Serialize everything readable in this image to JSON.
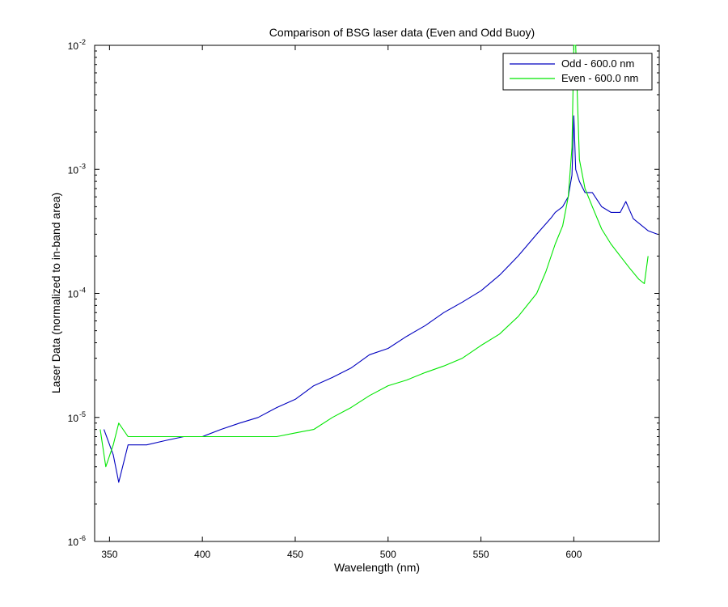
{
  "chart_data": {
    "type": "line",
    "title": "Comparison of BSG laser data (Even and Odd Buoy)",
    "xlabel": "Wavelength (nm)",
    "ylabel": "Laser Data (normalized to in-band area)",
    "xlim": [
      342,
      646
    ],
    "yscale": "log",
    "ylim": [
      1e-06,
      0.01
    ],
    "xticks": [
      350,
      400,
      450,
      500,
      550,
      600
    ],
    "yticks": [
      {
        "base": "10",
        "exp": "-6",
        "value": 1e-06
      },
      {
        "base": "10",
        "exp": "-5",
        "value": 1e-05
      },
      {
        "base": "10",
        "exp": "-4",
        "value": 0.0001
      },
      {
        "base": "10",
        "exp": "-3",
        "value": 0.001
      },
      {
        "base": "10",
        "exp": "-2",
        "value": 0.01
      }
    ],
    "grid": false,
    "legend_position": "top-right",
    "series": [
      {
        "name": "Odd - 600.0 nm",
        "color": "#0000bf",
        "x": [
          347,
          352,
          355,
          360,
          365,
          370,
          380,
          390,
          400,
          410,
          420,
          430,
          440,
          450,
          460,
          470,
          480,
          490,
          500,
          510,
          520,
          530,
          540,
          550,
          560,
          570,
          580,
          588,
          590,
          594,
          597,
          599,
          600,
          601,
          603,
          606,
          610,
          615,
          620,
          625,
          628,
          632,
          640,
          645
        ],
        "y": [
          8e-06,
          5e-06,
          3e-06,
          6e-06,
          6e-06,
          6e-06,
          6.5e-06,
          7e-06,
          7e-06,
          8e-06,
          9e-06,
          1e-05,
          1.2e-05,
          1.4e-05,
          1.8e-05,
          2.1e-05,
          2.5e-05,
          3.2e-05,
          3.6e-05,
          4.5e-05,
          5.5e-05,
          7e-05,
          8.5e-05,
          0.000105,
          0.00014,
          0.0002,
          0.0003,
          0.00041,
          0.00045,
          0.0005,
          0.0006,
          0.0009,
          0.0027,
          0.001,
          0.0008,
          0.00065,
          0.00065,
          0.0005,
          0.00045,
          0.00045,
          0.00055,
          0.0004,
          0.00032,
          0.0003
        ]
      },
      {
        "name": "Even - 600.0 nm",
        "color": "#00e600",
        "x": [
          345,
          348,
          352,
          355,
          360,
          365,
          370,
          380,
          390,
          400,
          410,
          420,
          430,
          440,
          450,
          460,
          470,
          480,
          490,
          500,
          510,
          520,
          530,
          540,
          550,
          560,
          570,
          580,
          585,
          590,
          594,
          597,
          599,
          600,
          601,
          603,
          606,
          610,
          615,
          620,
          625,
          630,
          635,
          638,
          640
        ],
        "y": [
          8e-06,
          4e-06,
          6e-06,
          9e-06,
          7e-06,
          7e-06,
          7e-06,
          7e-06,
          7e-06,
          7e-06,
          7e-06,
          7e-06,
          7e-06,
          7e-06,
          7.5e-06,
          8e-06,
          1e-05,
          1.2e-05,
          1.5e-05,
          1.8e-05,
          2e-05,
          2.3e-05,
          2.6e-05,
          3e-05,
          3.8e-05,
          4.7e-05,
          6.5e-05,
          0.0001,
          0.00015,
          0.00025,
          0.00035,
          0.0006,
          0.0015,
          0.01,
          0.01,
          0.0012,
          0.0007,
          0.0005,
          0.00033,
          0.00025,
          0.0002,
          0.00016,
          0.00013,
          0.00012,
          0.0002
        ]
      }
    ]
  }
}
